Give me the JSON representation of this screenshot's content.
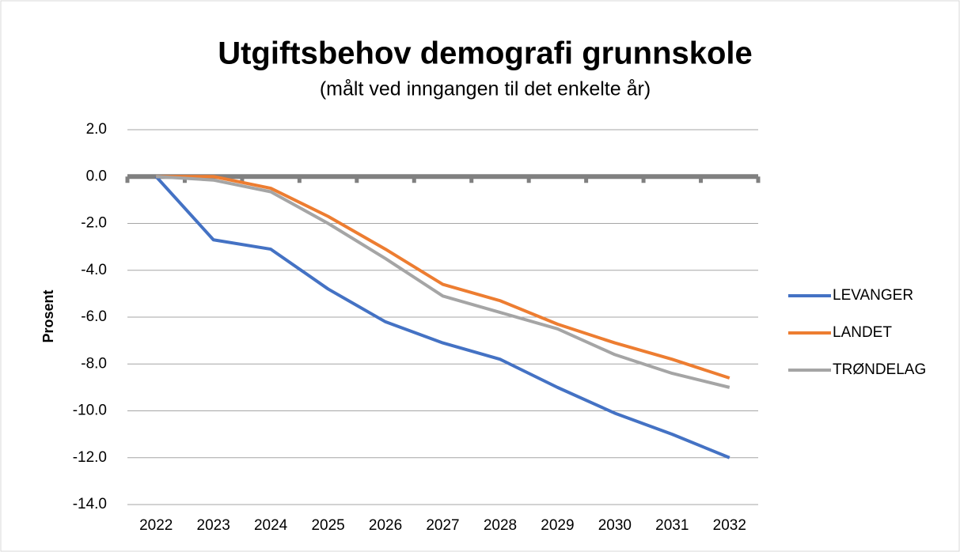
{
  "chart_data": {
    "type": "line",
    "title": "Utgiftsbehov demografi grunnskole",
    "subtitle": "(målt ved inngangen til det enkelte år)",
    "y_label": "Prosent",
    "categories": [
      "2022",
      "2023",
      "2024",
      "2025",
      "2026",
      "2027",
      "2028",
      "2029",
      "2030",
      "2031",
      "2032"
    ],
    "series": [
      {
        "name": "LEVANGER",
        "color": "#4472c4",
        "values": [
          0,
          -2.7,
          -3.1,
          -4.8,
          -6.2,
          -7.1,
          -7.8,
          -9.0,
          -10.1,
          -11.0,
          -12.0
        ]
      },
      {
        "name": "LANDET",
        "color": "#ed7d31",
        "values": [
          0,
          0,
          -0.5,
          -1.7,
          -3.1,
          -4.6,
          -5.3,
          -6.3,
          -7.1,
          -7.8,
          -8.6
        ]
      },
      {
        "name": "TRØNDELAG",
        "color": "#a5a5a5",
        "values": [
          0,
          -0.15,
          -0.65,
          -2.0,
          -3.5,
          -5.1,
          -5.8,
          -6.5,
          -7.6,
          -8.4,
          -9.0
        ]
      }
    ],
    "ylim": [
      -14,
      2
    ],
    "yticks": [
      {
        "value": 2,
        "label": "2.0"
      },
      {
        "value": 0,
        "label": "0.0"
      },
      {
        "value": -2,
        "label": "-2.0"
      },
      {
        "value": -4,
        "label": "-4.0"
      },
      {
        "value": -6,
        "label": "-6.0"
      },
      {
        "value": -8,
        "label": "-8.0"
      },
      {
        "value": -10,
        "label": "-10.0"
      },
      {
        "value": -12,
        "label": "-12.0"
      },
      {
        "value": -14,
        "label": "-14.0"
      }
    ],
    "grid": true,
    "legend": "right"
  }
}
